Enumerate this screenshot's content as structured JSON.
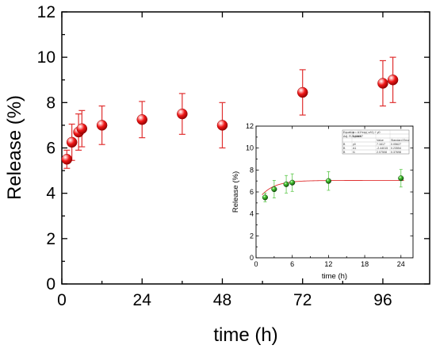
{
  "chart_data": [
    {
      "type": "scatter",
      "xlabel": "time (h)",
      "ylabel": "Release (%)",
      "xlim": [
        0,
        110
      ],
      "ylim": [
        0,
        12
      ],
      "xticks": [
        0,
        24,
        48,
        72,
        96
      ],
      "yticks": [
        0,
        2,
        4,
        6,
        8,
        10,
        12
      ],
      "series": [
        {
          "marker": "sphere",
          "color": "#e8141a",
          "error_bar_color": "#e03030",
          "x": [
            1.5,
            3,
            5,
            6,
            12,
            24,
            36,
            48,
            72,
            96,
            99
          ],
          "y": [
            5.5,
            6.25,
            6.7,
            6.85,
            7.0,
            7.25,
            7.5,
            7.0,
            8.45,
            8.85,
            9.0
          ],
          "error": [
            0.4,
            0.8,
            0.8,
            0.8,
            0.85,
            0.8,
            0.9,
            1.0,
            1.0,
            1.0,
            1.0
          ]
        }
      ]
    },
    {
      "type": "scatter",
      "role": "inset",
      "xlabel": "time (h)",
      "ylabel": "Release (%)",
      "xlim": [
        0,
        26
      ],
      "ylim": [
        0,
        12
      ],
      "xticks": [
        0,
        6,
        12,
        18,
        24
      ],
      "yticks": [
        0,
        2,
        4,
        6,
        8,
        10,
        12
      ],
      "series": [
        {
          "marker": "sphere",
          "color": "#1e8a12",
          "error_bar_color": "#5cc84a",
          "x": [
            1.5,
            3,
            5,
            6,
            12,
            24
          ],
          "y": [
            5.5,
            6.25,
            6.7,
            6.85,
            7.0,
            7.25
          ],
          "error": [
            0.4,
            0.8,
            0.8,
            0.8,
            0.85,
            0.8
          ]
        }
      ],
      "fit_curve": {
        "color": "#e03030",
        "asymptote": 7.05,
        "y0": 5.0,
        "k": 0.45
      },
      "fit_table": {
        "rows": [
          [
            "Equation",
            "y = A1*exp(-x/t1) + y0",
            "",
            ""
          ],
          [
            "Adj. R-Square",
            "0.99657",
            "",
            ""
          ],
          [
            "",
            "",
            "Value",
            "Standard Error"
          ],
          [
            "B",
            "y0",
            "7.1617",
            "0.05627"
          ],
          [
            "B",
            "A1",
            "-2.44015",
            "0.23554"
          ],
          [
            "B",
            "t1",
            "2.07508",
            "0.37698"
          ]
        ]
      }
    }
  ]
}
